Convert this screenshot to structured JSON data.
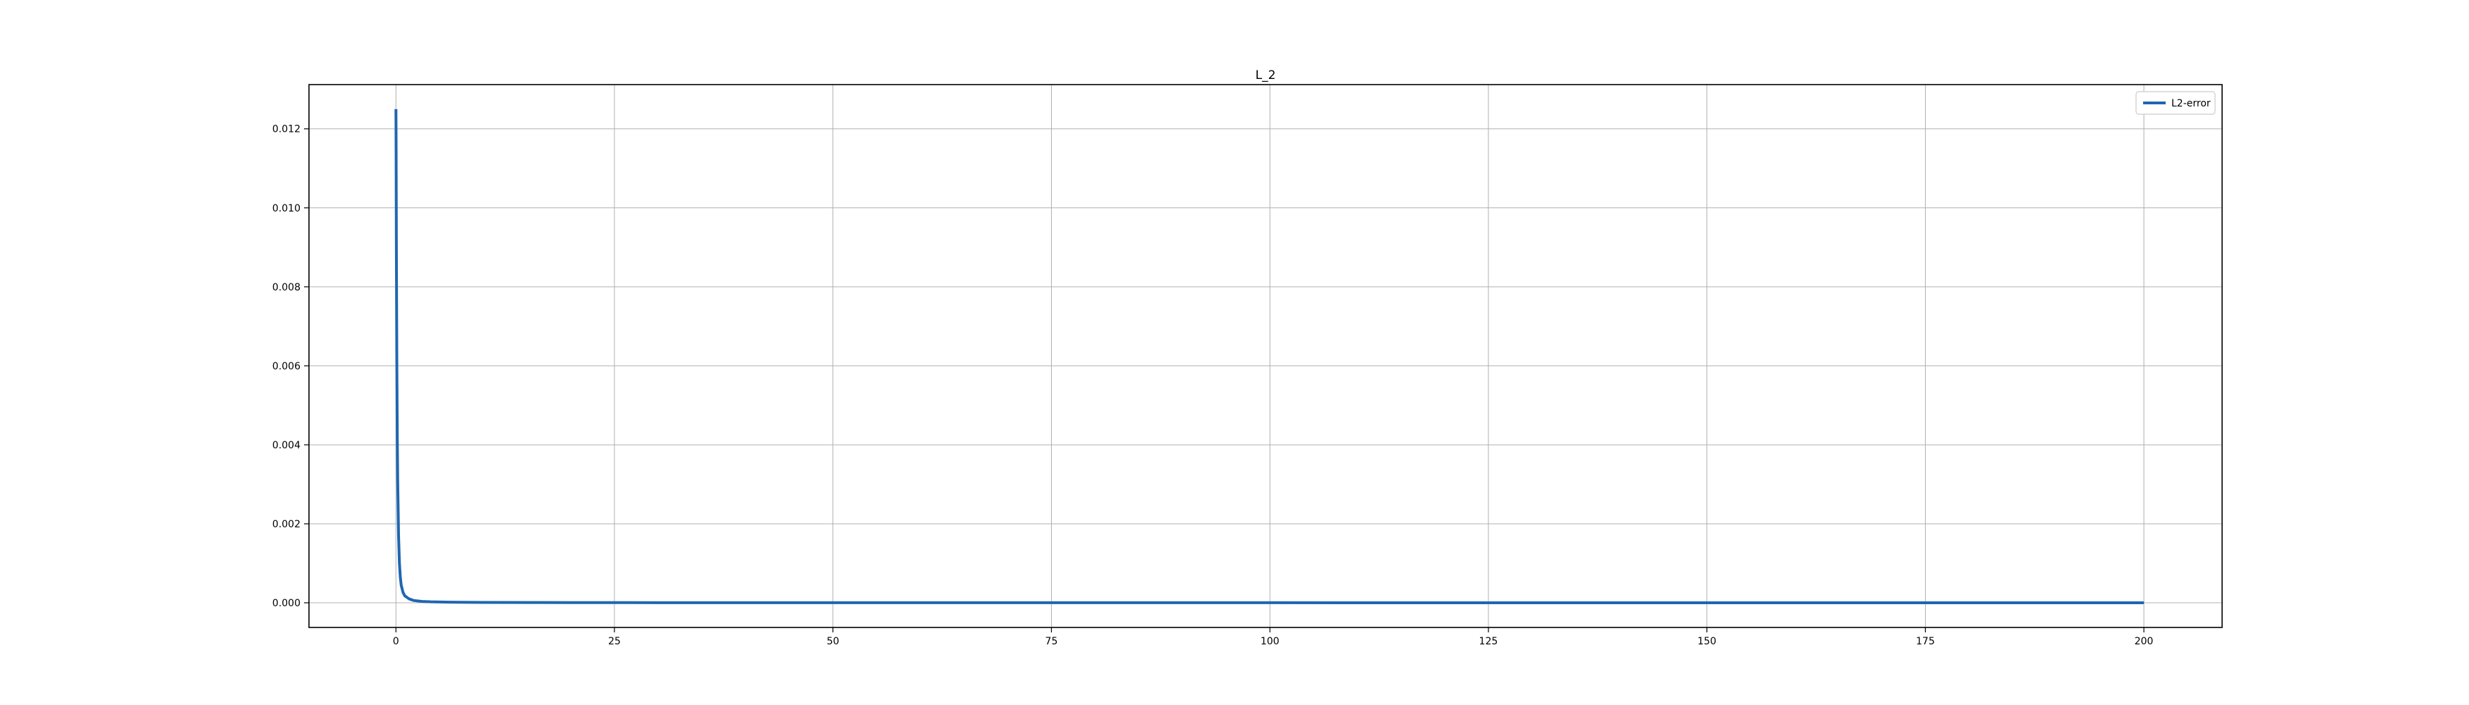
{
  "chart_data": {
    "type": "line",
    "title": "L_2",
    "xlabel": "",
    "ylabel": "",
    "xlim": [
      -9.95,
      208.95
    ],
    "ylim": [
      -0.000624,
      0.01312
    ],
    "x_ticks": [
      0,
      25,
      50,
      75,
      100,
      125,
      150,
      175,
      200
    ],
    "x_tick_labels": [
      "0",
      "25",
      "50",
      "75",
      "100",
      "125",
      "150",
      "175",
      "200"
    ],
    "y_ticks": [
      0,
      0.002,
      0.004,
      0.006,
      0.008,
      0.01,
      0.012
    ],
    "y_tick_labels": [
      "0.000",
      "0.002",
      "0.004",
      "0.006",
      "0.008",
      "0.010",
      "0.012"
    ],
    "grid": true,
    "legend": {
      "position": "top-right",
      "entries": [
        "L2-error"
      ]
    },
    "series": [
      {
        "name": "L2-error",
        "color": "#1f66b0",
        "x": [
          0,
          0.02,
          0.05,
          0.1,
          0.15,
          0.2,
          0.3,
          0.4,
          0.5,
          0.6,
          0.8,
          1,
          1.5,
          2,
          3,
          4,
          5,
          7,
          10,
          15,
          20,
          30,
          50,
          75,
          100,
          125,
          150,
          175,
          200
        ],
        "y": [
          0.0125,
          0.0115,
          0.009,
          0.0062,
          0.0043,
          0.0031,
          0.0017,
          0.001,
          0.00065,
          0.00045,
          0.00027,
          0.00018,
          0.0001,
          6e-05,
          3.5e-05,
          2.5e-05,
          2e-05,
          1.4e-05,
          1e-05,
          7e-06,
          5e-06,
          4e-06,
          3e-06,
          2e-06,
          2e-06,
          1.5e-06,
          1.5e-06,
          1e-06,
          1e-06
        ]
      }
    ]
  }
}
